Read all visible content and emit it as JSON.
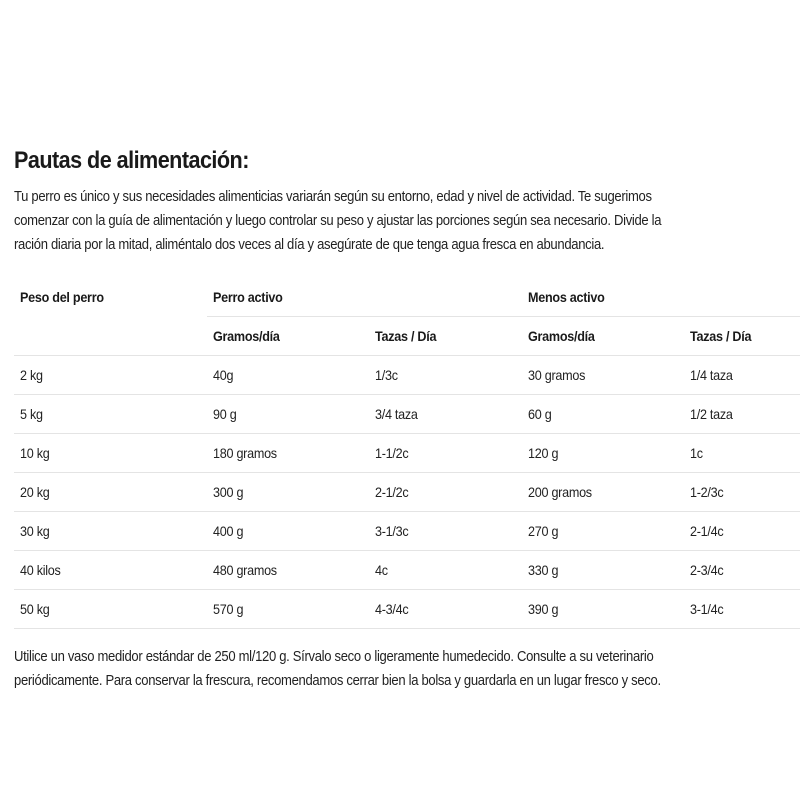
{
  "title": "Pautas de alimentación:",
  "intro": [
    "Tu perro es único y sus necesidades alimenticias variarán según su entorno, edad y nivel de actividad. Te sugerimos",
    "comenzar con la guía de alimentación y luego controlar su peso y ajustar las porciones según sea necesario. Divide la",
    "ración diaria por la mitad, aliméntalo dos veces al día y asegúrate de que tenga agua fresca en abundancia."
  ],
  "table": {
    "header": {
      "weight": "Peso del perro",
      "active": "Perro activo",
      "less_active": "Menos activo"
    },
    "subheader": [
      "Gramos/día",
      "Tazas / Día",
      "Gramos/día",
      "Tazas / Día"
    ],
    "rows": [
      [
        "2 kg",
        "40g",
        "1/3c",
        "30 gramos",
        "1/4 taza"
      ],
      [
        "5 kg",
        "90 g",
        "3/4 taza",
        "60 g",
        "1/2 taza"
      ],
      [
        "10 kg",
        "180 gramos",
        "1-1/2c",
        "120 g",
        "1c"
      ],
      [
        "20 kg",
        "300 g",
        "2-1/2c",
        "200 gramos",
        "1-2/3c"
      ],
      [
        "30 kg",
        "400 g",
        "3-1/3c",
        "270 g",
        "2-1/4c"
      ],
      [
        "40 kilos",
        "480 gramos",
        "4c",
        "330 g",
        "2-3/4c"
      ],
      [
        "50 kg",
        "570 g",
        "4-3/4c",
        "390 g",
        "3-1/4c"
      ]
    ]
  },
  "footnote": [
    "Utilice un vaso medidor estándar de 250 ml/120 g. Sírvalo seco o ligeramente humedecido. Consulte a su veterinario",
    "periódicamente. Para conservar la frescura, recomendamos cerrar bien la bolsa y guardarla en un lugar fresco y seco."
  ]
}
